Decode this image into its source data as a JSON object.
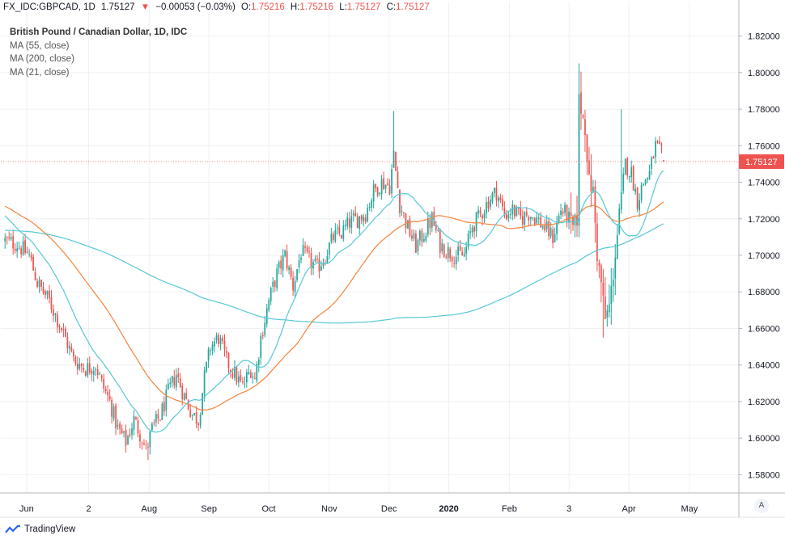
{
  "header": {
    "symbol": "FX_IDC:GBPCAD, 1D",
    "last": "1.75127",
    "arrow": "▼",
    "change": "−0.00053 (−0.03%)",
    "o_label": "O:",
    "o": "1.75216",
    "h_label": "H:",
    "h": "1.75216",
    "l_label": "L:",
    "l": "1.75127",
    "c_label": "C:",
    "c": "1.75127"
  },
  "legend": {
    "title": "British Pound / Canadian Dollar, 1D, IDC",
    "ma1": "MA (55, close)",
    "ma2": "MA (200, close)",
    "ma3": "MA (21, close)"
  },
  "footer": {
    "brand": "TradingView",
    "scale_button": "A"
  },
  "colors": {
    "up": "#26a69a",
    "down": "#ef5350",
    "ma55": "#f4833a",
    "ma200": "#56c8d6",
    "ma21": "#56c8d6",
    "grid": "#eef0f4",
    "price_tag": "#ef5350"
  },
  "chart_data": {
    "type": "candlestick",
    "title": "British Pound / Canadian Dollar, 1D, IDC",
    "x_ticks": [
      "Jun",
      "2",
      "Aug",
      "Sep",
      "Oct",
      "Nov",
      "Dec",
      "2020",
      "Feb",
      "3",
      "Apr",
      "May"
    ],
    "x_tick_pos": [
      0.035,
      0.119,
      0.201,
      0.282,
      0.363,
      0.445,
      0.526,
      0.607,
      0.689,
      0.77,
      0.851,
      0.933
    ],
    "y_ticks": [
      "1.58000",
      "1.60000",
      "1.62000",
      "1.64000",
      "1.66000",
      "1.68000",
      "1.70000",
      "1.72000",
      "1.74000",
      "1.76000",
      "1.78000",
      "1.80000",
      "1.82000"
    ],
    "ylim": [
      1.57,
      1.83
    ],
    "last_price": "1.75127",
    "anchors": [
      [
        0,
        1.708
      ],
      [
        6,
        1.706
      ],
      [
        12,
        1.7
      ],
      [
        16,
        1.685
      ],
      [
        22,
        1.675
      ],
      [
        28,
        1.66
      ],
      [
        34,
        1.643
      ],
      [
        40,
        1.638
      ],
      [
        45,
        1.64
      ],
      [
        48,
        1.63
      ],
      [
        52,
        1.62
      ],
      [
        56,
        1.605
      ],
      [
        60,
        1.598
      ],
      [
        64,
        1.61
      ],
      [
        68,
        1.6
      ],
      [
        70,
        1.593
      ],
      [
        73,
        1.605
      ],
      [
        77,
        1.612
      ],
      [
        81,
        1.625
      ],
      [
        85,
        1.635
      ],
      [
        89,
        1.623
      ],
      [
        93,
        1.613
      ],
      [
        96,
        1.61
      ],
      [
        99,
        1.633
      ],
      [
        102,
        1.65
      ],
      [
        106,
        1.655
      ],
      [
        110,
        1.642
      ],
      [
        114,
        1.635
      ],
      [
        118,
        1.628
      ],
      [
        122,
        1.638
      ],
      [
        124,
        1.632
      ],
      [
        127,
        1.655
      ],
      [
        131,
        1.675
      ],
      [
        135,
        1.69
      ],
      [
        139,
        1.7
      ],
      [
        143,
        1.683
      ],
      [
        147,
        1.702
      ],
      [
        151,
        1.697
      ],
      [
        155,
        1.693
      ],
      [
        159,
        1.7
      ],
      [
        163,
        1.71
      ],
      [
        167,
        1.712
      ],
      [
        171,
        1.718
      ],
      [
        175,
        1.72
      ],
      [
        179,
        1.723
      ],
      [
        183,
        1.735
      ],
      [
        187,
        1.74
      ],
      [
        191,
        1.738
      ],
      [
        193,
        1.755
      ],
      [
        196,
        1.728
      ],
      [
        200,
        1.715
      ],
      [
        204,
        1.705
      ],
      [
        208,
        1.712
      ],
      [
        212,
        1.72
      ],
      [
        216,
        1.706
      ],
      [
        220,
        1.702
      ],
      [
        224,
        1.7
      ],
      [
        228,
        1.7
      ],
      [
        232,
        1.716
      ],
      [
        236,
        1.722
      ],
      [
        240,
        1.73
      ],
      [
        244,
        1.735
      ],
      [
        248,
        1.722
      ],
      [
        252,
        1.725
      ],
      [
        256,
        1.72
      ],
      [
        260,
        1.723
      ],
      [
        264,
        1.72
      ],
      [
        268,
        1.715
      ],
      [
        272,
        1.71
      ],
      [
        276,
        1.725
      ],
      [
        279,
        1.722
      ],
      [
        282,
        1.715
      ],
      [
        284,
        1.72
      ],
      [
        285,
        1.785
      ],
      [
        288,
        1.77
      ],
      [
        290,
        1.74
      ],
      [
        292,
        1.735
      ],
      [
        294,
        1.7
      ],
      [
        296,
        1.685
      ],
      [
        298,
        1.665
      ],
      [
        300,
        1.672
      ],
      [
        302,
        1.69
      ],
      [
        305,
        1.722
      ],
      [
        308,
        1.75
      ],
      [
        311,
        1.745
      ],
      [
        314,
        1.73
      ],
      [
        317,
        1.74
      ],
      [
        320,
        1.745
      ],
      [
        323,
        1.76
      ],
      [
        326,
        1.755
      ],
      [
        327,
        1.751
      ]
    ],
    "series": [
      {
        "name": "MA (55, close)",
        "period": 55,
        "color": "#f4833a"
      },
      {
        "name": "MA (200, close)",
        "period": 200,
        "color": "#56c8d6"
      },
      {
        "name": "MA (21, close)",
        "period": 21,
        "color": "#56c8d6"
      }
    ],
    "ma_start_values": {
      "ma55": 1.745,
      "ma200": 1.718,
      "ma21": 1.735
    },
    "candle_count": 328
  }
}
